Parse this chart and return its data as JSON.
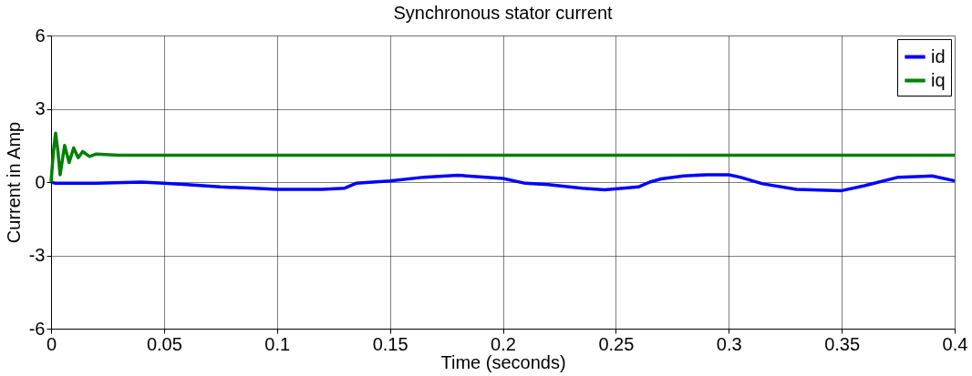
{
  "chart_data": {
    "type": "line",
    "title": "Synchronous stator current",
    "xlabel": "Time (seconds)",
    "ylabel": "Current in Amp",
    "xlim": [
      0,
      0.4
    ],
    "xticks": [
      0,
      0.05,
      0.1,
      0.15,
      0.2,
      0.25,
      0.3,
      0.35,
      0.4
    ],
    "ylim": [
      -6,
      6
    ],
    "yticks": [
      -6,
      -3,
      0,
      3,
      6
    ],
    "grid": true,
    "legend": "top right",
    "line_style": "solid",
    "series": [
      {
        "name": "id",
        "color": "#0000ff",
        "x": [
          0,
          0.002,
          0.02,
          0.04,
          0.05,
          0.06,
          0.075,
          0.09,
          0.1,
          0.12,
          0.13,
          0.135,
          0.15,
          0.165,
          0.18,
          0.2,
          0.21,
          0.22,
          0.235,
          0.245,
          0.26,
          0.265,
          0.27,
          0.28,
          0.29,
          0.3,
          0.305,
          0.315,
          0.33,
          0.35,
          0.36,
          0.375,
          0.39,
          0.4
        ],
        "values": [
          0,
          -0.05,
          -0.05,
          0,
          -0.05,
          -0.1,
          -0.2,
          -0.25,
          -0.3,
          -0.3,
          -0.25,
          -0.05,
          0.05,
          0.2,
          0.28,
          0.15,
          -0.05,
          -0.1,
          -0.25,
          -0.32,
          -0.2,
          0,
          0.13,
          0.25,
          0.3,
          0.3,
          0.2,
          -0.07,
          -0.3,
          -0.35,
          -0.15,
          0.2,
          0.25,
          0.05
        ]
      },
      {
        "name": "iq",
        "color": "#008000",
        "x": [
          0,
          0.001,
          0.002,
          0.003,
          0.004,
          0.006,
          0.008,
          0.01,
          0.012,
          0.014,
          0.017,
          0.02,
          0.03,
          0.1,
          0.2,
          0.3,
          0.4
        ],
        "values": [
          0,
          1.2,
          2.0,
          1.3,
          0.3,
          1.5,
          0.8,
          1.4,
          1.0,
          1.25,
          1.05,
          1.15,
          1.1,
          1.1,
          1.1,
          1.1,
          1.1
        ]
      }
    ]
  }
}
